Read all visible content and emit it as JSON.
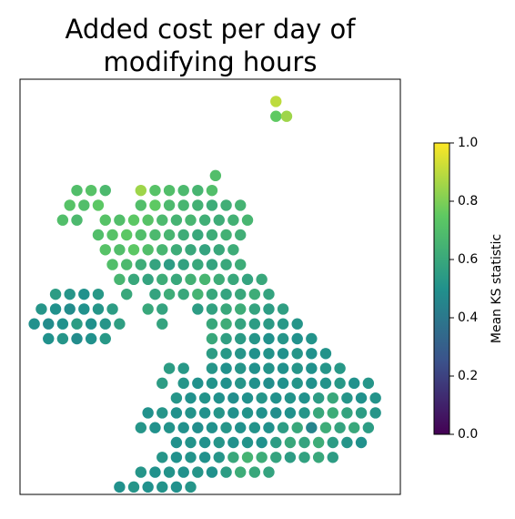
{
  "chart_data": {
    "type": "scatter",
    "title": "Added cost per day of\nmodifying hours",
    "xlim": [
      -8.5,
      2.2
    ],
    "ylim": [
      49.8,
      61.0
    ],
    "colormap": "viridis",
    "clim": [
      0,
      1
    ],
    "cticks": [
      {
        "value": 0,
        "label": "0.0"
      },
      {
        "value": 0.2,
        "label": "0.2"
      },
      {
        "value": 0.4,
        "label": "0.4"
      },
      {
        "value": 0.6,
        "label": "0.6"
      },
      {
        "value": 0.8,
        "label": "0.8"
      },
      {
        "value": 1,
        "label": "1.0"
      }
    ],
    "colorbar_label": "Mean KS statistic",
    "x": [
      -1.3,
      -1.3,
      -1.0,
      -3.0,
      -6.9,
      -6.5,
      -6.1,
      -5.1,
      -4.7,
      -4.3,
      -3.9,
      -3.5,
      -3.1,
      -7.1,
      -6.7,
      -6.3,
      -5.1,
      -4.7,
      -4.3,
      -3.9,
      -3.5,
      -3.1,
      -2.7,
      -2.3,
      -7.3,
      -6.9,
      -6.1,
      -5.7,
      -5.3,
      -4.9,
      -4.5,
      -4.1,
      -3.7,
      -3.3,
      -2.9,
      -2.5,
      -2.1,
      -6.3,
      -5.9,
      -5.5,
      -5.1,
      -4.7,
      -4.3,
      -3.9,
      -3.5,
      -3.1,
      -2.7,
      -2.3,
      -6.1,
      -5.7,
      -5.3,
      -4.9,
      -4.5,
      -4.1,
      -3.7,
      -3.3,
      -2.9,
      -2.5,
      -5.9,
      -5.5,
      -5.1,
      -4.7,
      -4.3,
      -3.9,
      -3.5,
      -3.1,
      -2.7,
      -2.3,
      -5.7,
      -5.3,
      -4.9,
      -4.5,
      -4.1,
      -3.7,
      -3.3,
      -2.9,
      -2.5,
      -2.1,
      -1.7,
      -7.5,
      -7.1,
      -6.7,
      -6.3,
      -5.5,
      -4.7,
      -4.3,
      -3.9,
      -3.5,
      -3.1,
      -2.7,
      -2.3,
      -1.9,
      -1.5,
      -7.9,
      -7.5,
      -7.1,
      -6.7,
      -6.3,
      -5.9,
      -4.9,
      -4.5,
      -3.5,
      -3.1,
      -2.7,
      -2.3,
      -1.9,
      -1.5,
      -1.1,
      -8.1,
      -7.7,
      -7.3,
      -6.9,
      -6.5,
      -6.1,
      -5.7,
      -4.5,
      -3.1,
      -2.7,
      -2.3,
      -1.9,
      -1.5,
      -1.1,
      -0.7,
      -7.7,
      -7.3,
      -6.9,
      -6.5,
      -6.1,
      -3.1,
      -2.7,
      -2.3,
      -1.9,
      -1.5,
      -1.1,
      -0.7,
      -0.3,
      -3.1,
      -2.7,
      -2.3,
      -1.9,
      -1.5,
      -1.1,
      -0.7,
      -0.3,
      0.1,
      -4.3,
      -3.9,
      -3.1,
      -2.7,
      -2.3,
      -1.9,
      -1.5,
      -1.1,
      -0.7,
      -0.3,
      0.1,
      0.5,
      -4.5,
      -3.9,
      -3.5,
      -3.1,
      -2.7,
      -2.3,
      -1.9,
      -1.5,
      -1.1,
      -0.7,
      -0.3,
      0.1,
      0.5,
      0.9,
      1.3,
      -4.1,
      -3.7,
      -3.3,
      -2.9,
      -2.5,
      -2.1,
      -1.7,
      -1.3,
      -0.9,
      -0.5,
      -0.1,
      0.3,
      0.7,
      1.1,
      1.5,
      -4.9,
      -4.5,
      -4.1,
      -3.7,
      -3.3,
      -2.9,
      -2.5,
      -2.1,
      -1.7,
      -1.3,
      -0.9,
      -0.5,
      -0.1,
      0.3,
      0.7,
      1.1,
      1.5,
      -5.1,
      -4.7,
      -4.3,
      -3.9,
      -3.5,
      -3.1,
      -2.7,
      -2.3,
      -1.9,
      -1.5,
      -1.1,
      -0.7,
      -0.3,
      0.1,
      0.5,
      0.9,
      1.3,
      -4.1,
      -3.7,
      -3.3,
      -2.9,
      -2.5,
      -2.1,
      -1.7,
      -1.3,
      -0.9,
      -0.5,
      -0.1,
      0.3,
      0.7,
      1.1,
      -4.5,
      -4.1,
      -3.7,
      -3.3,
      -2.9,
      -2.5,
      -2.1,
      -1.7,
      -1.3,
      -0.9,
      -0.5,
      -0.1,
      0.3,
      -5.1,
      -4.7,
      -4.3,
      -3.9,
      -3.5,
      -3.1,
      -2.7,
      -2.3,
      -1.9,
      -1.5,
      -5.7,
      -5.3,
      -4.9,
      -4.5,
      -4.1,
      -3.7
    ],
    "y": [
      60.4,
      60.0,
      60.0,
      58.4,
      58.0,
      58.0,
      58.0,
      58.0,
      58.0,
      58.0,
      58.0,
      58.0,
      58.0,
      57.6,
      57.6,
      57.6,
      57.6,
      57.6,
      57.6,
      57.6,
      57.6,
      57.6,
      57.6,
      57.6,
      57.2,
      57.2,
      57.2,
      57.2,
      57.2,
      57.2,
      57.2,
      57.2,
      57.2,
      57.2,
      57.2,
      57.2,
      57.2,
      56.8,
      56.8,
      56.8,
      56.8,
      56.8,
      56.8,
      56.8,
      56.8,
      56.8,
      56.8,
      56.8,
      56.4,
      56.4,
      56.4,
      56.4,
      56.4,
      56.4,
      56.4,
      56.4,
      56.4,
      56.4,
      56.0,
      56.0,
      56.0,
      56.0,
      56.0,
      56.0,
      56.0,
      56.0,
      56.0,
      56.0,
      55.6,
      55.6,
      55.6,
      55.6,
      55.6,
      55.6,
      55.6,
      55.6,
      55.6,
      55.6,
      55.6,
      55.2,
      55.2,
      55.2,
      55.2,
      55.2,
      55.2,
      55.2,
      55.2,
      55.2,
      55.2,
      55.2,
      55.2,
      55.2,
      55.2,
      54.8,
      54.8,
      54.8,
      54.8,
      54.8,
      54.8,
      54.8,
      54.8,
      54.8,
      54.8,
      54.8,
      54.8,
      54.8,
      54.8,
      54.8,
      54.4,
      54.4,
      54.4,
      54.4,
      54.4,
      54.4,
      54.4,
      54.4,
      54.4,
      54.4,
      54.4,
      54.4,
      54.4,
      54.4,
      54.4,
      54.0,
      54.0,
      54.0,
      54.0,
      54.0,
      54.0,
      54.0,
      54.0,
      54.0,
      54.0,
      54.0,
      54.0,
      54.0,
      53.6,
      53.6,
      53.6,
      53.6,
      53.6,
      53.6,
      53.6,
      53.6,
      53.6,
      53.2,
      53.2,
      53.2,
      53.2,
      53.2,
      53.2,
      53.2,
      53.2,
      53.2,
      53.2,
      53.2,
      53.2,
      52.8,
      52.8,
      52.8,
      52.8,
      52.8,
      52.8,
      52.8,
      52.8,
      52.8,
      52.8,
      52.8,
      52.8,
      52.8,
      52.8,
      52.8,
      52.4,
      52.4,
      52.4,
      52.4,
      52.4,
      52.4,
      52.4,
      52.4,
      52.4,
      52.4,
      52.4,
      52.4,
      52.4,
      52.4,
      52.4,
      52.0,
      52.0,
      52.0,
      52.0,
      52.0,
      52.0,
      52.0,
      52.0,
      52.0,
      52.0,
      52.0,
      52.0,
      52.0,
      52.0,
      52.0,
      52.0,
      52.0,
      51.6,
      51.6,
      51.6,
      51.6,
      51.6,
      51.6,
      51.6,
      51.6,
      51.6,
      51.6,
      51.6,
      51.6,
      51.6,
      51.6,
      51.6,
      51.6,
      51.6,
      51.2,
      51.2,
      51.2,
      51.2,
      51.2,
      51.2,
      51.2,
      51.2,
      51.2,
      51.2,
      51.2,
      51.2,
      51.2,
      51.2,
      50.8,
      50.8,
      50.8,
      50.8,
      50.8,
      50.8,
      50.8,
      50.8,
      50.8,
      50.8,
      50.8,
      50.8,
      50.8,
      50.4,
      50.4,
      50.4,
      50.4,
      50.4,
      50.4,
      50.4,
      50.4,
      50.4,
      50.4,
      50.0,
      50.0,
      50.0,
      50.0,
      50.0,
      50.0
    ],
    "values": [
      0.9,
      0.75,
      0.85,
      0.7,
      0.7,
      0.72,
      0.68,
      0.85,
      0.72,
      0.7,
      0.68,
      0.66,
      0.7,
      0.72,
      0.7,
      0.74,
      0.7,
      0.75,
      0.68,
      0.66,
      0.64,
      0.62,
      0.63,
      0.65,
      0.7,
      0.68,
      0.72,
      0.7,
      0.74,
      0.72,
      0.68,
      0.65,
      0.66,
      0.63,
      0.62,
      0.64,
      0.66,
      0.7,
      0.72,
      0.74,
      0.7,
      0.68,
      0.66,
      0.62,
      0.6,
      0.62,
      0.64,
      0.63,
      0.72,
      0.7,
      0.74,
      0.7,
      0.66,
      0.62,
      0.6,
      0.58,
      0.6,
      0.62,
      0.7,
      0.68,
      0.62,
      0.58,
      0.55,
      0.57,
      0.6,
      0.58,
      0.6,
      0.62,
      0.66,
      0.6,
      0.58,
      0.62,
      0.6,
      0.64,
      0.66,
      0.62,
      0.6,
      0.58,
      0.6,
      0.55,
      0.52,
      0.5,
      0.53,
      0.6,
      0.58,
      0.62,
      0.6,
      0.65,
      0.6,
      0.58,
      0.6,
      0.62,
      0.58,
      0.52,
      0.5,
      0.48,
      0.5,
      0.52,
      0.55,
      0.6,
      0.58,
      0.55,
      0.57,
      0.6,
      0.62,
      0.58,
      0.55,
      0.56,
      0.5,
      0.48,
      0.5,
      0.55,
      0.5,
      0.52,
      0.56,
      0.58,
      0.6,
      0.62,
      0.58,
      0.55,
      0.54,
      0.53,
      0.52,
      0.5,
      0.52,
      0.48,
      0.5,
      0.53,
      0.6,
      0.56,
      0.54,
      0.52,
      0.5,
      0.52,
      0.5,
      0.51,
      0.55,
      0.53,
      0.52,
      0.5,
      0.51,
      0.5,
      0.52,
      0.5,
      0.51,
      0.55,
      0.53,
      0.52,
      0.5,
      0.52,
      0.5,
      0.51,
      0.5,
      0.52,
      0.5,
      0.52,
      0.53,
      0.55,
      0.52,
      0.5,
      0.51,
      0.5,
      0.52,
      0.5,
      0.49,
      0.5,
      0.52,
      0.5,
      0.51,
      0.53,
      0.5,
      0.52,
      0.52,
      0.5,
      0.51,
      0.5,
      0.49,
      0.5,
      0.52,
      0.5,
      0.51,
      0.5,
      0.55,
      0.6,
      0.52,
      0.5,
      0.51,
      0.5,
      0.52,
      0.5,
      0.51,
      0.5,
      0.52,
      0.5,
      0.51,
      0.5,
      0.49,
      0.5,
      0.52,
      0.6,
      0.62,
      0.58,
      0.55,
      0.52,
      0.52,
      0.5,
      0.51,
      0.5,
      0.49,
      0.5,
      0.52,
      0.5,
      0.51,
      0.5,
      0.55,
      0.6,
      0.45,
      0.62,
      0.58,
      0.6,
      0.55,
      0.5,
      0.51,
      0.5,
      0.52,
      0.5,
      0.51,
      0.5,
      0.55,
      0.6,
      0.58,
      0.62,
      0.55,
      0.52,
      0.5,
      0.52,
      0.5,
      0.51,
      0.5,
      0.52,
      0.6,
      0.65,
      0.62,
      0.58,
      0.55,
      0.57,
      0.6,
      0.55,
      0.52,
      0.5,
      0.51,
      0.5,
      0.52,
      0.5,
      0.55,
      0.62,
      0.6,
      0.58,
      0.5,
      0.52,
      0.5,
      0.51,
      0.5,
      0.52
    ]
  }
}
